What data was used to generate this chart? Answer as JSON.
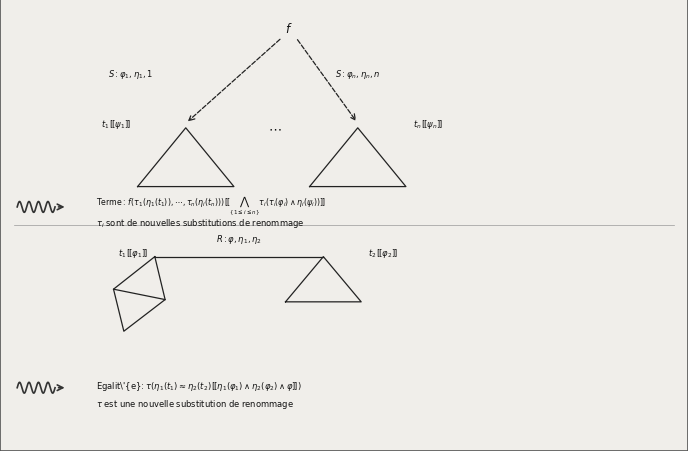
{
  "bg_color": "#f0eeea",
  "border_color": "#555555",
  "line_color": "#222222",
  "wavy_color": "#333333",
  "text_color": "#111111",
  "fig_width": 6.88,
  "fig_height": 4.52,
  "dpi": 100
}
